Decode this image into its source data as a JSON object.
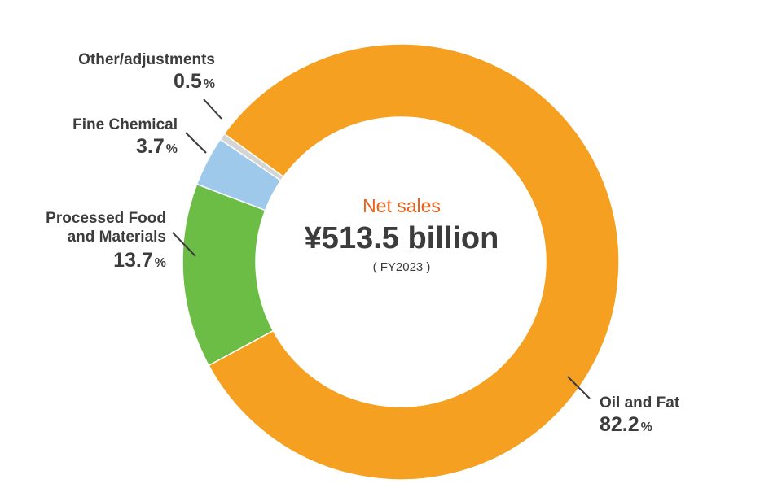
{
  "chart_data": {
    "type": "pie",
    "variant": "donut",
    "center": {
      "title": "Net sales",
      "total": "¥513.5 billion",
      "period": "( FY2023 )"
    },
    "slices": [
      {
        "label": "Oil and Fat",
        "value": 82.2,
        "display": "82.2",
        "color": "#f5a020"
      },
      {
        "label": "Processed Food and Materials",
        "label_lines": [
          "Processed Food",
          "and Materials"
        ],
        "value": 13.7,
        "display": "13.7",
        "color": "#6cbd45"
      },
      {
        "label": "Fine Chemical",
        "value": 3.7,
        "display": "3.7",
        "color": "#9ec9ea"
      },
      {
        "label": "Other/adjustments",
        "value": 0.5,
        "display": "0.5",
        "color": "#d4d4d4"
      }
    ],
    "unit": "%"
  }
}
